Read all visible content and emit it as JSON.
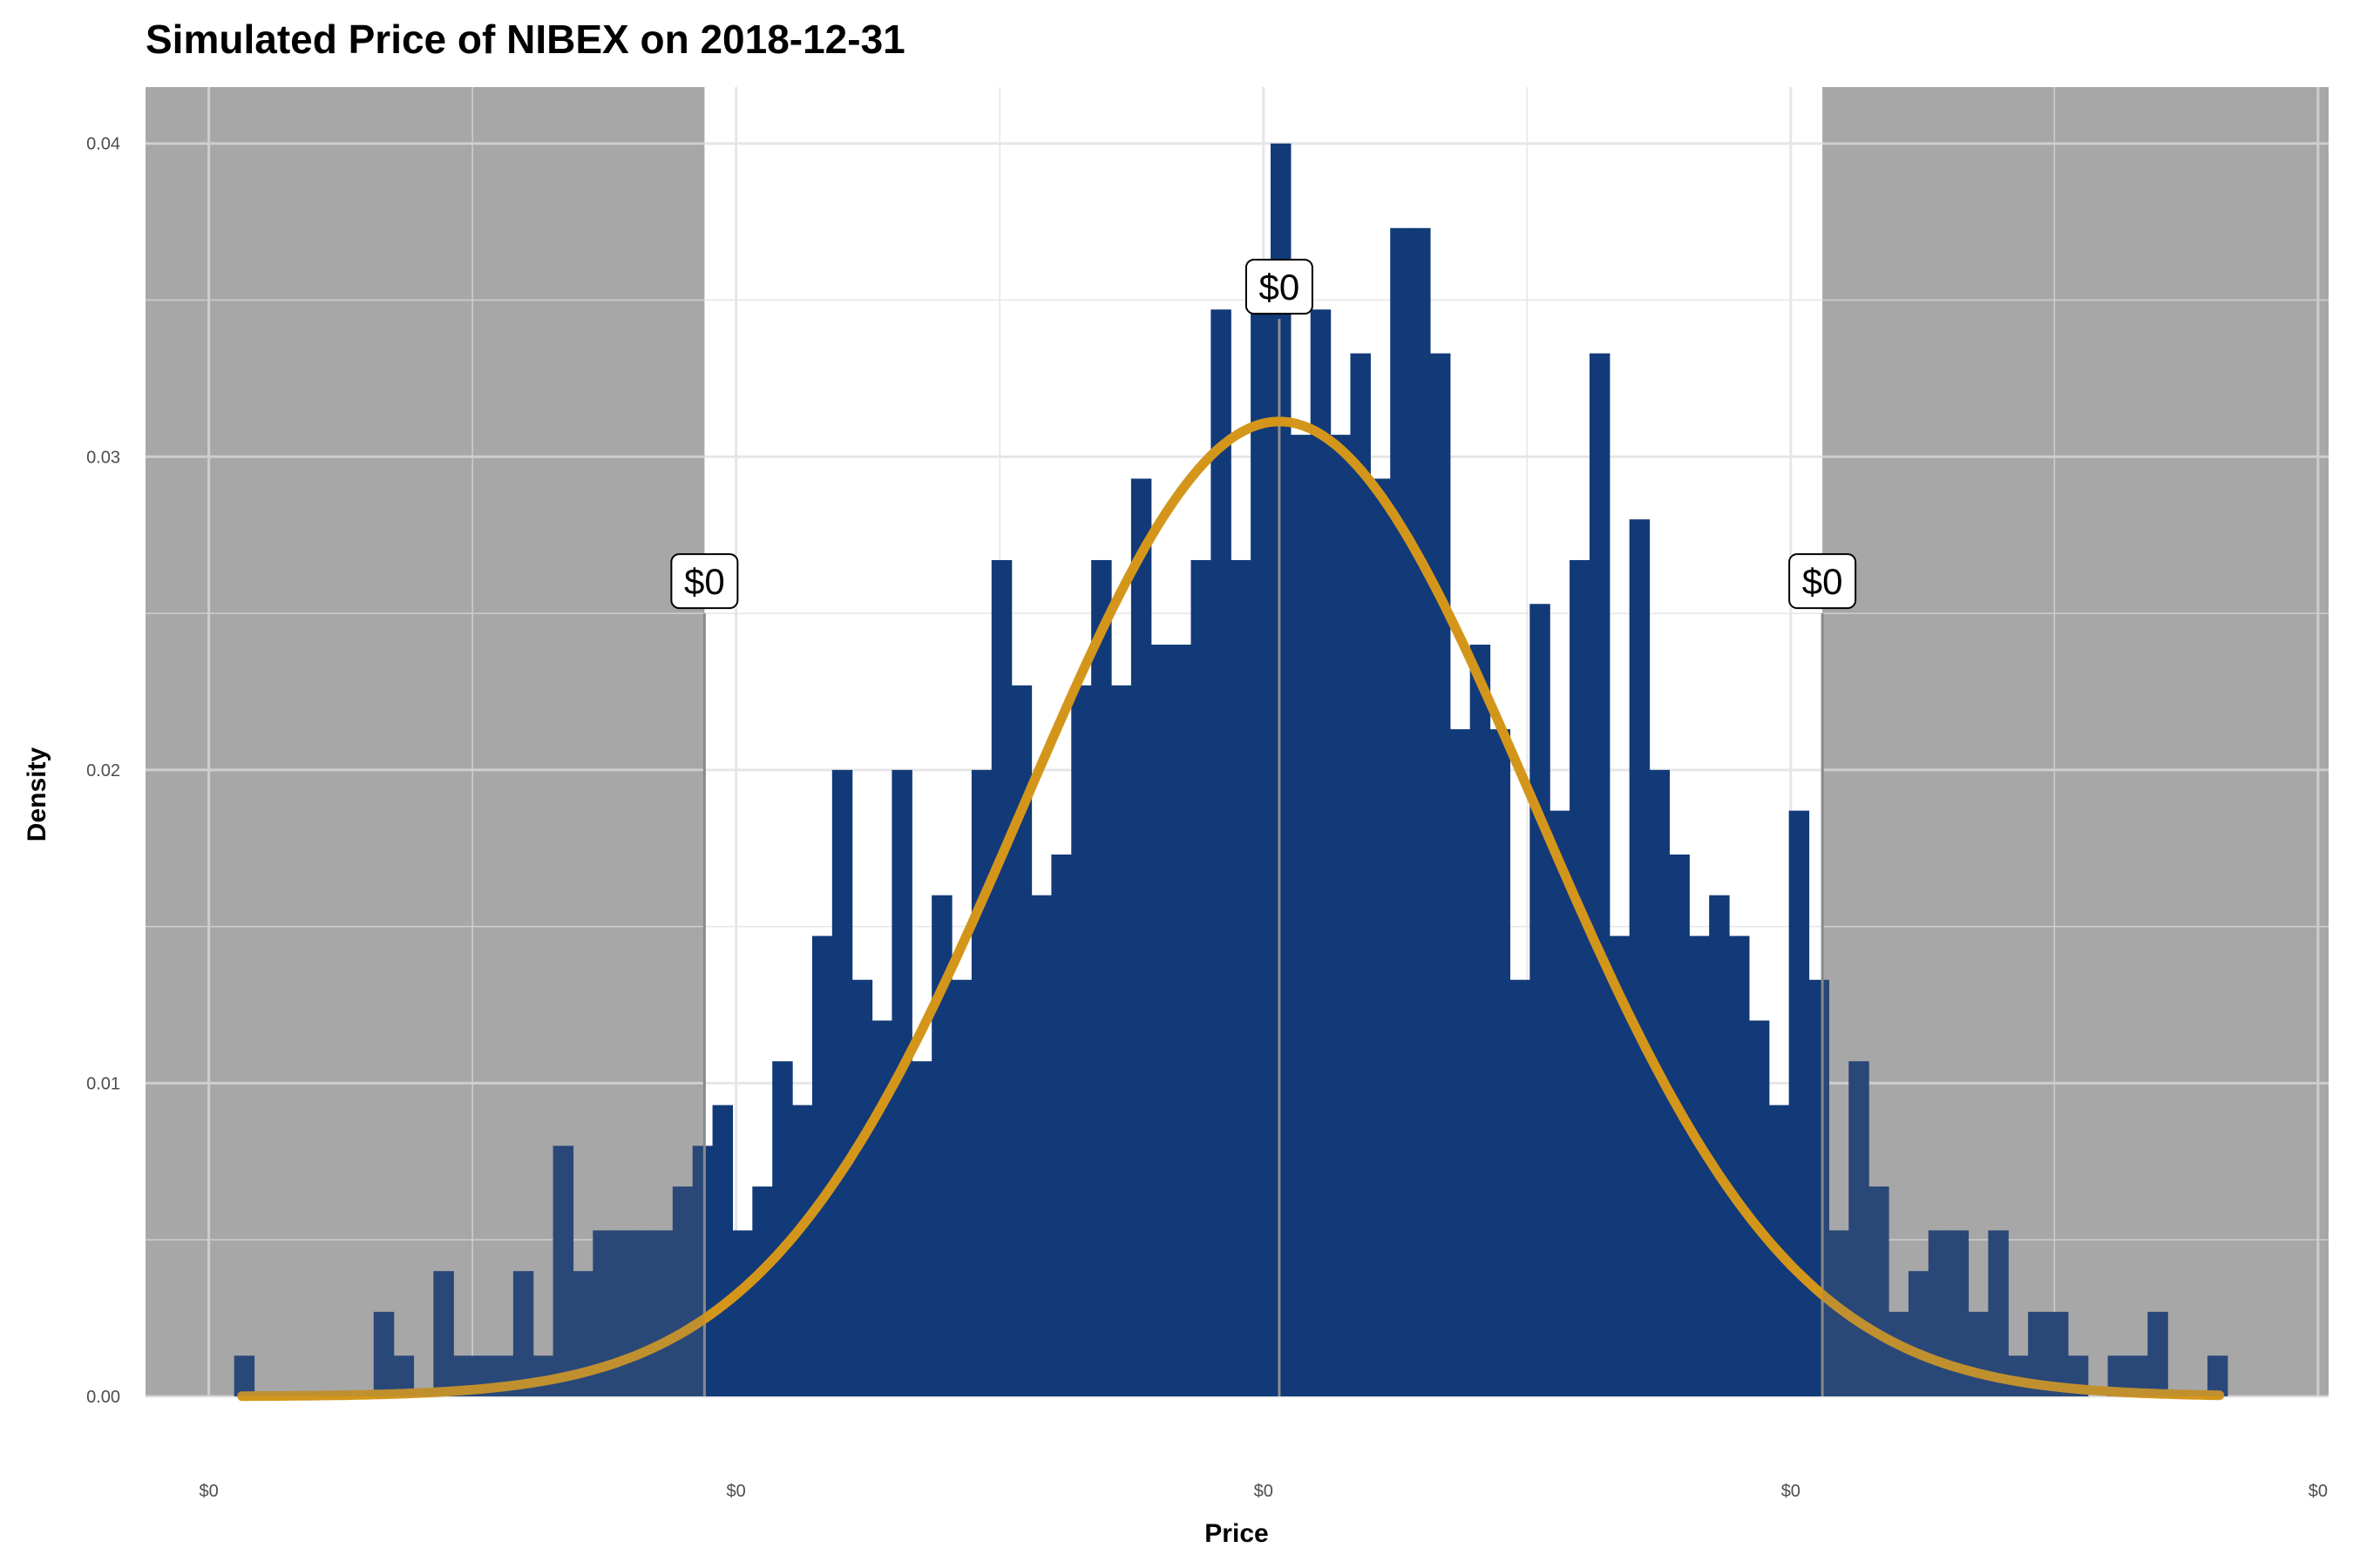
{
  "chart_data": {
    "type": "bar",
    "title": "Simulated Price of NIBEX on 2018-12-31",
    "xlabel": "Price",
    "ylabel": "Density",
    "ylim": [
      0,
      0.0418
    ],
    "xlim": [
      -0.12,
      4.02
    ],
    "x_ticks": [
      {
        "value": 0,
        "label": "$0"
      },
      {
        "value": 1,
        "label": "$0"
      },
      {
        "value": 2,
        "label": "$0"
      },
      {
        "value": 3,
        "label": "$0"
      },
      {
        "value": 4,
        "label": "$0"
      }
    ],
    "y_ticks": [
      {
        "value": 0.0,
        "label": "0.00"
      },
      {
        "value": 0.01,
        "label": "0.01"
      },
      {
        "value": 0.02,
        "label": "0.02"
      },
      {
        "value": 0.03,
        "label": "0.03"
      },
      {
        "value": 0.04,
        "label": "0.04"
      }
    ],
    "bin_width": 0.0378,
    "bins_start": 0.048,
    "values": [
      0.0013,
      0,
      0,
      0,
      0,
      0,
      0,
      0.0027,
      0.0013,
      0,
      0.004,
      0.0013,
      0.0013,
      0.0013,
      0.004,
      0.0013,
      0.008,
      0.004,
      0.0053,
      0.0053,
      0.0053,
      0.0053,
      0.0067,
      0.008,
      0.0093,
      0.0053,
      0.0067,
      0.0107,
      0.0093,
      0.0147,
      0.02,
      0.0133,
      0.012,
      0.02,
      0.0107,
      0.016,
      0.0133,
      0.02,
      0.0267,
      0.0227,
      0.016,
      0.0173,
      0.0227,
      0.0267,
      0.0227,
      0.0293,
      0.024,
      0.024,
      0.0267,
      0.0347,
      0.0267,
      0.0347,
      0.04,
      0.0307,
      0.0347,
      0.0307,
      0.0333,
      0.0293,
      0.0373,
      0.0373,
      0.0333,
      0.0213,
      0.024,
      0.0213,
      0.0133,
      0.0253,
      0.0187,
      0.0267,
      0.0333,
      0.0147,
      0.028,
      0.02,
      0.0173,
      0.0147,
      0.016,
      0.0147,
      0.012,
      0.0093,
      0.0187,
      0.0133,
      0.0053,
      0.0107,
      0.0067,
      0.0027,
      0.004,
      0.0053,
      0.0053,
      0.0027,
      0.0053,
      0.0013,
      0.0027,
      0.0027,
      0.0013,
      0,
      0.0013,
      0.0013,
      0.0027,
      0,
      0,
      0.0013
    ],
    "normal_curve": {
      "mean": 2.03,
      "sd": 0.4845,
      "color": "#d4961a"
    },
    "shaded_regions": [
      {
        "from": -0.12,
        "to": 0.94
      },
      {
        "from": 3.06,
        "to": 4.02
      }
    ],
    "annotations": [
      {
        "x": 0.94,
        "y": 0.025,
        "label": "$0"
      },
      {
        "x": 2.03,
        "y": 0.0344,
        "label": "$0"
      },
      {
        "x": 3.06,
        "y": 0.025,
        "label": "$0"
      }
    ],
    "colors": {
      "bar": "#123a78",
      "bar_shaded": "#27406a",
      "shade": "#b4b4b4",
      "grid": "#e6e6e6",
      "curve": "#d4961a",
      "vline": "#8c8c8c"
    }
  }
}
